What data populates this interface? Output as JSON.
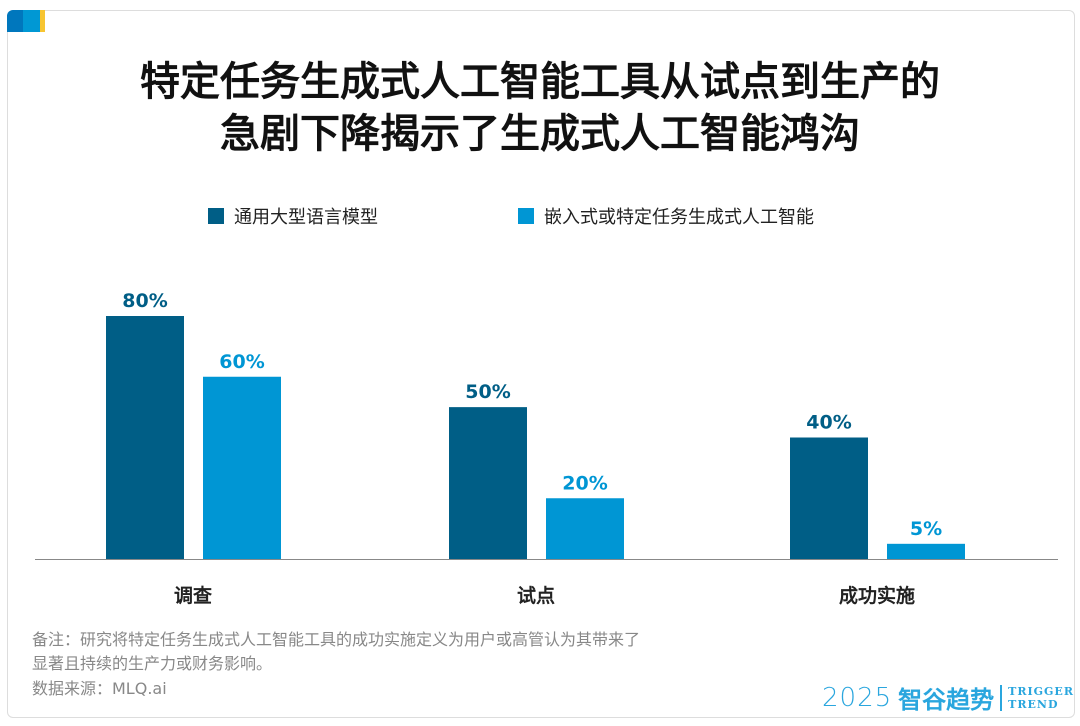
{
  "title_lines": [
    "特定任务生成式人工智能工具从试点到生产的",
    "急剧下降揭示了生成式人工智能鸿沟"
  ],
  "colors": {
    "dark": "#005e86",
    "light": "#0096d4"
  },
  "chart_data": {
    "type": "bar",
    "title": "特定任务生成式人工智能工具从试点到生产的急剧下降揭示了生成式人工智能鸿沟",
    "categories": [
      "调查",
      "试点",
      "成功实施"
    ],
    "series": [
      {
        "name": "通用大型语言模型",
        "values": [
          80,
          50,
          40
        ],
        "labels": [
          "80%",
          "50%",
          "40%"
        ]
      },
      {
        "name": "嵌入式或特定任务生成式人工智能",
        "values": [
          60,
          20,
          5
        ],
        "labels": [
          "60%",
          "20%",
          "5%"
        ]
      }
    ],
    "ylim": [
      0,
      80
    ],
    "legend": "top",
    "grid": false
  },
  "notes": [
    "备注：研究将特定任务生成式人工智能工具的成功实施定义为用户或高管认为其带来了",
    "显著且持续的生产力或财务影响。",
    "数据来源：MLQ.ai"
  ],
  "logo": {
    "year": "2025",
    "name": "智谷趋势",
    "en1": "TRIGGER",
    "en2": "TREND"
  }
}
